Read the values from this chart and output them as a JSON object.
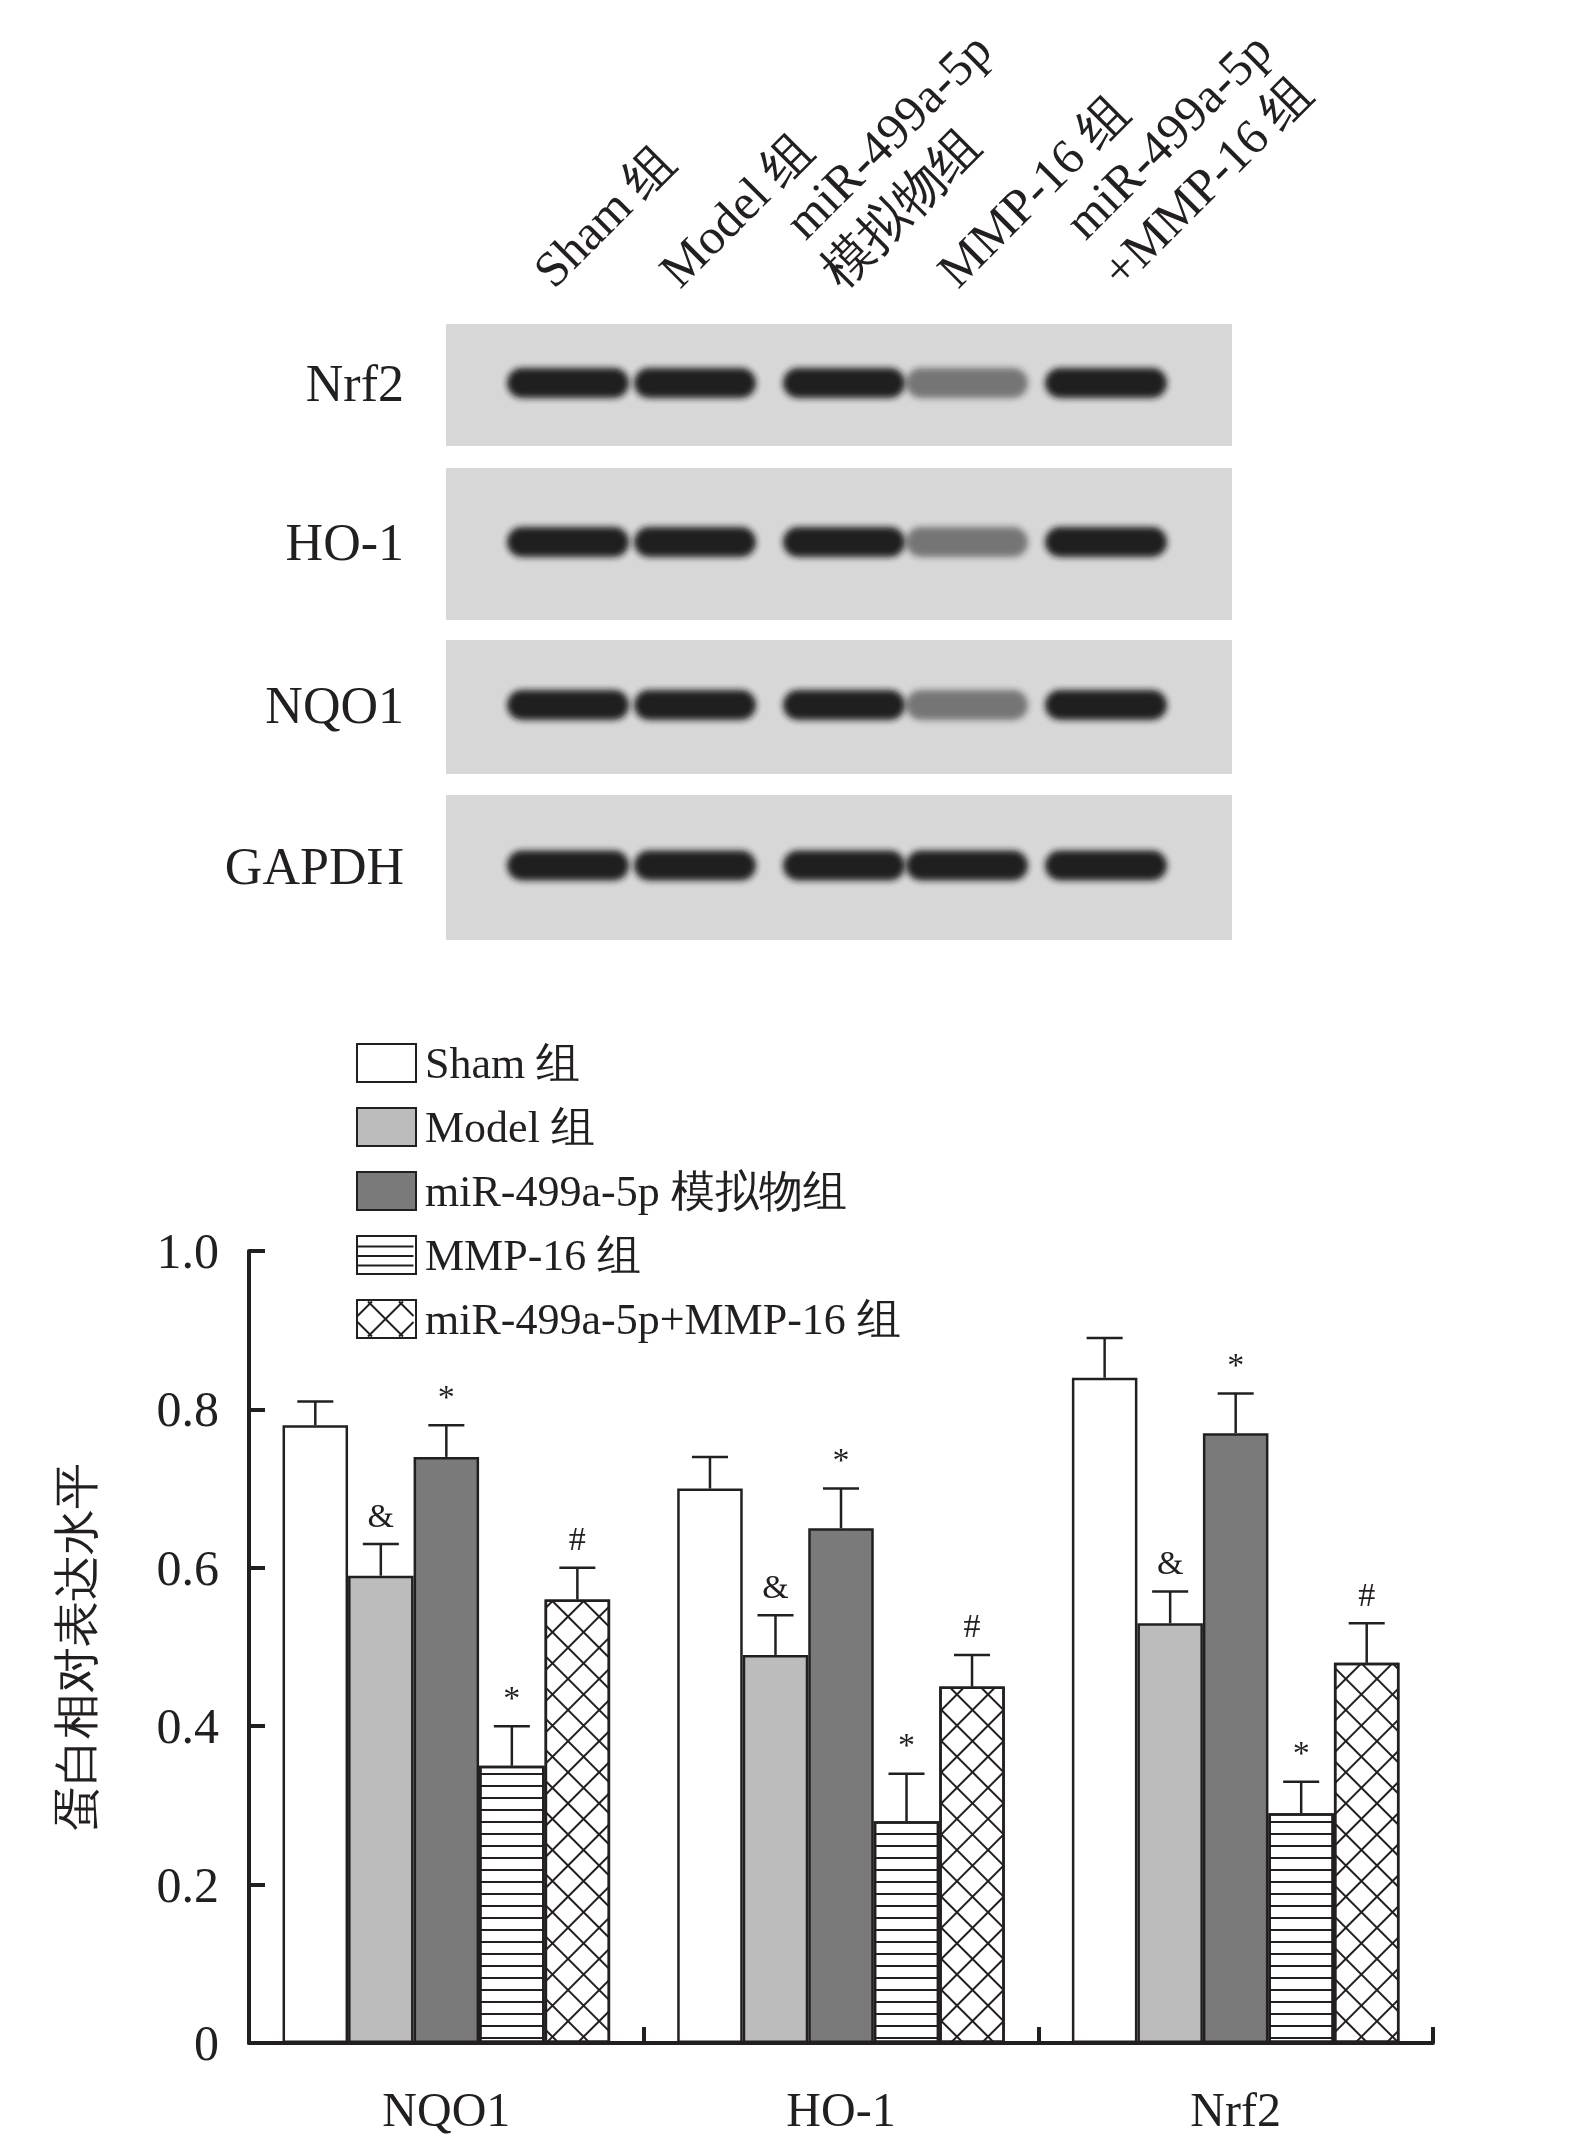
{
  "chart_data": [
    {
      "type": "other",
      "categories": [
        "Sham 组",
        "Model 组",
        "miR-499a-5p\n模拟物组",
        "MMP-16 组",
        "miR-499a-5p\n+MMP-16 组"
      ],
      "y_categories": [
        "Nrf2",
        "HO-1",
        "NQO1",
        "GAPDH"
      ]
    },
    {
      "type": "bar",
      "categories": [
        "NQO1",
        "HO-1",
        "Nrf2"
      ],
      "ylabel": "蛋白相对表达水平",
      "ylim": [
        0,
        1
      ],
      "yticks": [
        0,
        0.2,
        0.4,
        0.6,
        0.8,
        {
          "value": 1,
          "label": "1.0"
        }
      ],
      "legend": "top left",
      "series": [
        {
          "name": "Sham 组",
          "color": "#ffffff",
          "values": [
            0.78,
            0.7,
            0.84
          ],
          "errors": [
            0.03,
            0.04,
            0.05
          ]
        },
        {
          "name": "Model 组",
          "color": "#bcbcbc",
          "values": [
            0.59,
            0.49,
            0.53
          ],
          "errors": [
            0.04,
            0.05,
            0.04
          ],
          "value_labels": [
            "&",
            "&",
            "&"
          ]
        },
        {
          "name": "miR-499a-5p 模拟物组",
          "color": "#7a7a7a",
          "values": [
            0.74,
            0.65,
            0.77
          ],
          "errors": [
            0.04,
            0.05,
            0.05
          ],
          "value_labels": [
            "*",
            "*",
            "*"
          ]
        },
        {
          "name": "MMP-16 组",
          "color": "#ffffff",
          "values": [
            0.35,
            0.28,
            0.29
          ],
          "errors": [
            0.05,
            0.06,
            0.04
          ],
          "value_labels": [
            "*",
            "*",
            "*"
          ]
        },
        {
          "name": "miR-499a-5p+MMP-16 组",
          "color": "#ffffff",
          "values": [
            0.56,
            0.45,
            0.48
          ],
          "errors": [
            0.04,
            0.04,
            0.05
          ],
          "value_labels": [
            "#",
            "#",
            "#"
          ]
        }
      ]
    }
  ]
}
